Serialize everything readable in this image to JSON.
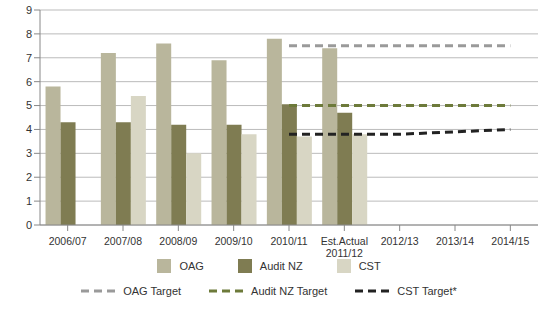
{
  "chart_data": {
    "type": "bar",
    "categories": [
      "2006/07",
      "2007/08",
      "2008/09",
      "2009/10",
      "2010/11",
      "Est.Actual 2011/12",
      "2012/13",
      "2013/14",
      "2014/15"
    ],
    "series": [
      {
        "name": "OAG",
        "type": "bar",
        "color": "#b9b69c",
        "values": [
          5.8,
          7.2,
          7.6,
          6.9,
          7.8,
          7.4,
          null,
          null,
          null
        ]
      },
      {
        "name": "Audit NZ",
        "type": "bar",
        "color": "#7f7c52",
        "values": [
          4.3,
          4.3,
          4.2,
          4.2,
          5.05,
          4.7,
          null,
          null,
          null
        ]
      },
      {
        "name": "CST",
        "type": "bar",
        "color": "#d8d6c4",
        "values": [
          null,
          5.4,
          3.0,
          3.8,
          3.7,
          3.8,
          null,
          null,
          null
        ]
      },
      {
        "name": "OAG Target",
        "type": "line",
        "line_style": "dashed",
        "color": "#9a9a9a",
        "values": [
          null,
          null,
          null,
          null,
          7.5,
          7.5,
          7.5,
          7.5,
          7.5
        ]
      },
      {
        "name": "Audit NZ Target",
        "type": "line",
        "line_style": "dashed",
        "color": "#6d7a3a",
        "values": [
          null,
          null,
          null,
          null,
          5.0,
          5.0,
          5.0,
          5.0,
          5.0
        ]
      },
      {
        "name": "CST Target*",
        "type": "line",
        "line_style": "dashed",
        "color": "#222222",
        "values": [
          null,
          null,
          null,
          null,
          3.8,
          3.8,
          3.8,
          3.9,
          4.0
        ]
      }
    ],
    "ylim": [
      0,
      9
    ],
    "yticks": [
      0,
      1,
      2,
      3,
      4,
      5,
      6,
      7,
      8,
      9
    ],
    "grid": true,
    "legend": "bottom"
  }
}
